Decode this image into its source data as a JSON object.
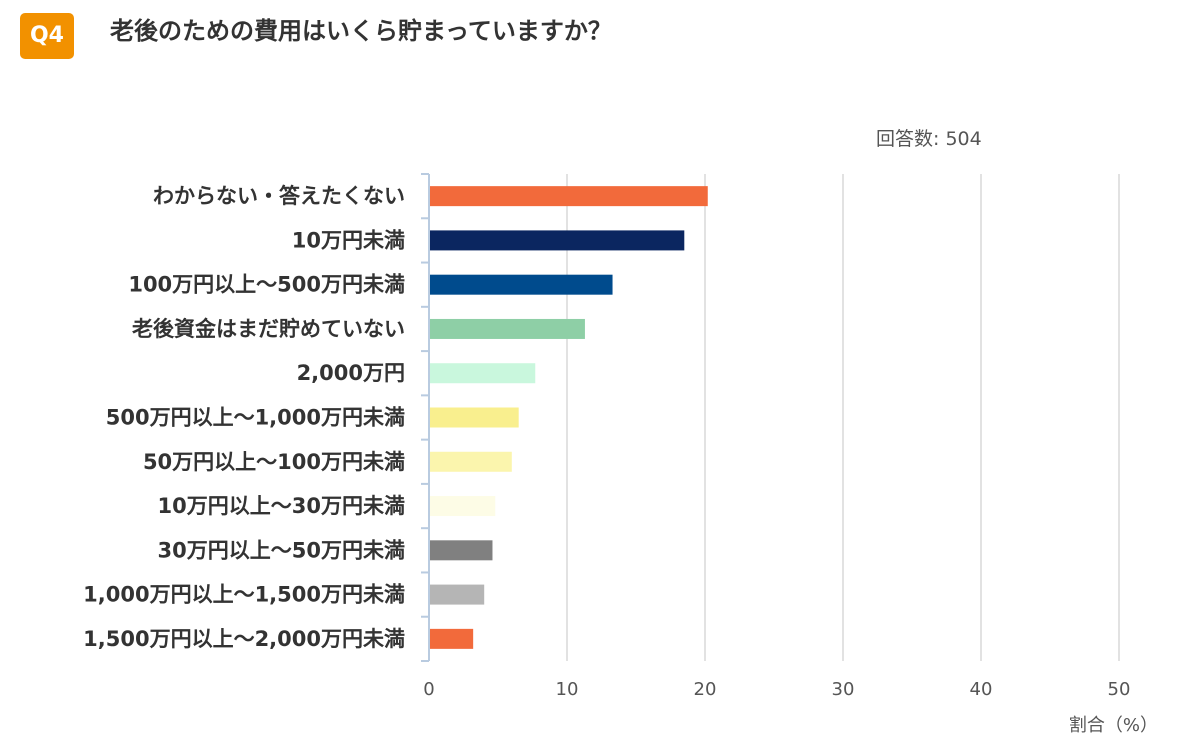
{
  "header": {
    "badge": "Q4",
    "title": "老後のための費用はいくら貯まっていますか？",
    "respondents": "回答数: 504"
  },
  "chart_data": {
    "type": "bar",
    "orientation": "horizontal",
    "categories": [
      "わからない・答えたくない",
      "10万円未満",
      "100万円以上～500万円未満",
      "老後資金はまだ貯めていない",
      "2,000万円",
      "500万円以上～1,000万円未満",
      "50万円以上～100万円未満",
      "10万円以上～30万円未満",
      "30万円以上～50万円未満",
      "1,000万円以上～1,500万円未満",
      "1,500万円以上～2,000万円未満"
    ],
    "values": [
      20.2,
      18.5,
      13.3,
      11.3,
      7.7,
      6.5,
      6.0,
      4.8,
      4.6,
      4.0,
      3.2
    ],
    "colors": [
      "#f26a3b",
      "#0b2660",
      "#004b8d",
      "#8ecfa6",
      "#c9f7dd",
      "#f9ef8e",
      "#fbf5ad",
      "#fdfce6",
      "#808080",
      "#b5b5b5",
      "#f26a3b"
    ],
    "xlim": [
      0,
      50
    ],
    "xticks": [
      "0",
      "10",
      "20",
      "30",
      "40",
      "50"
    ],
    "xlabel": "割合（%）",
    "grid": true
  }
}
